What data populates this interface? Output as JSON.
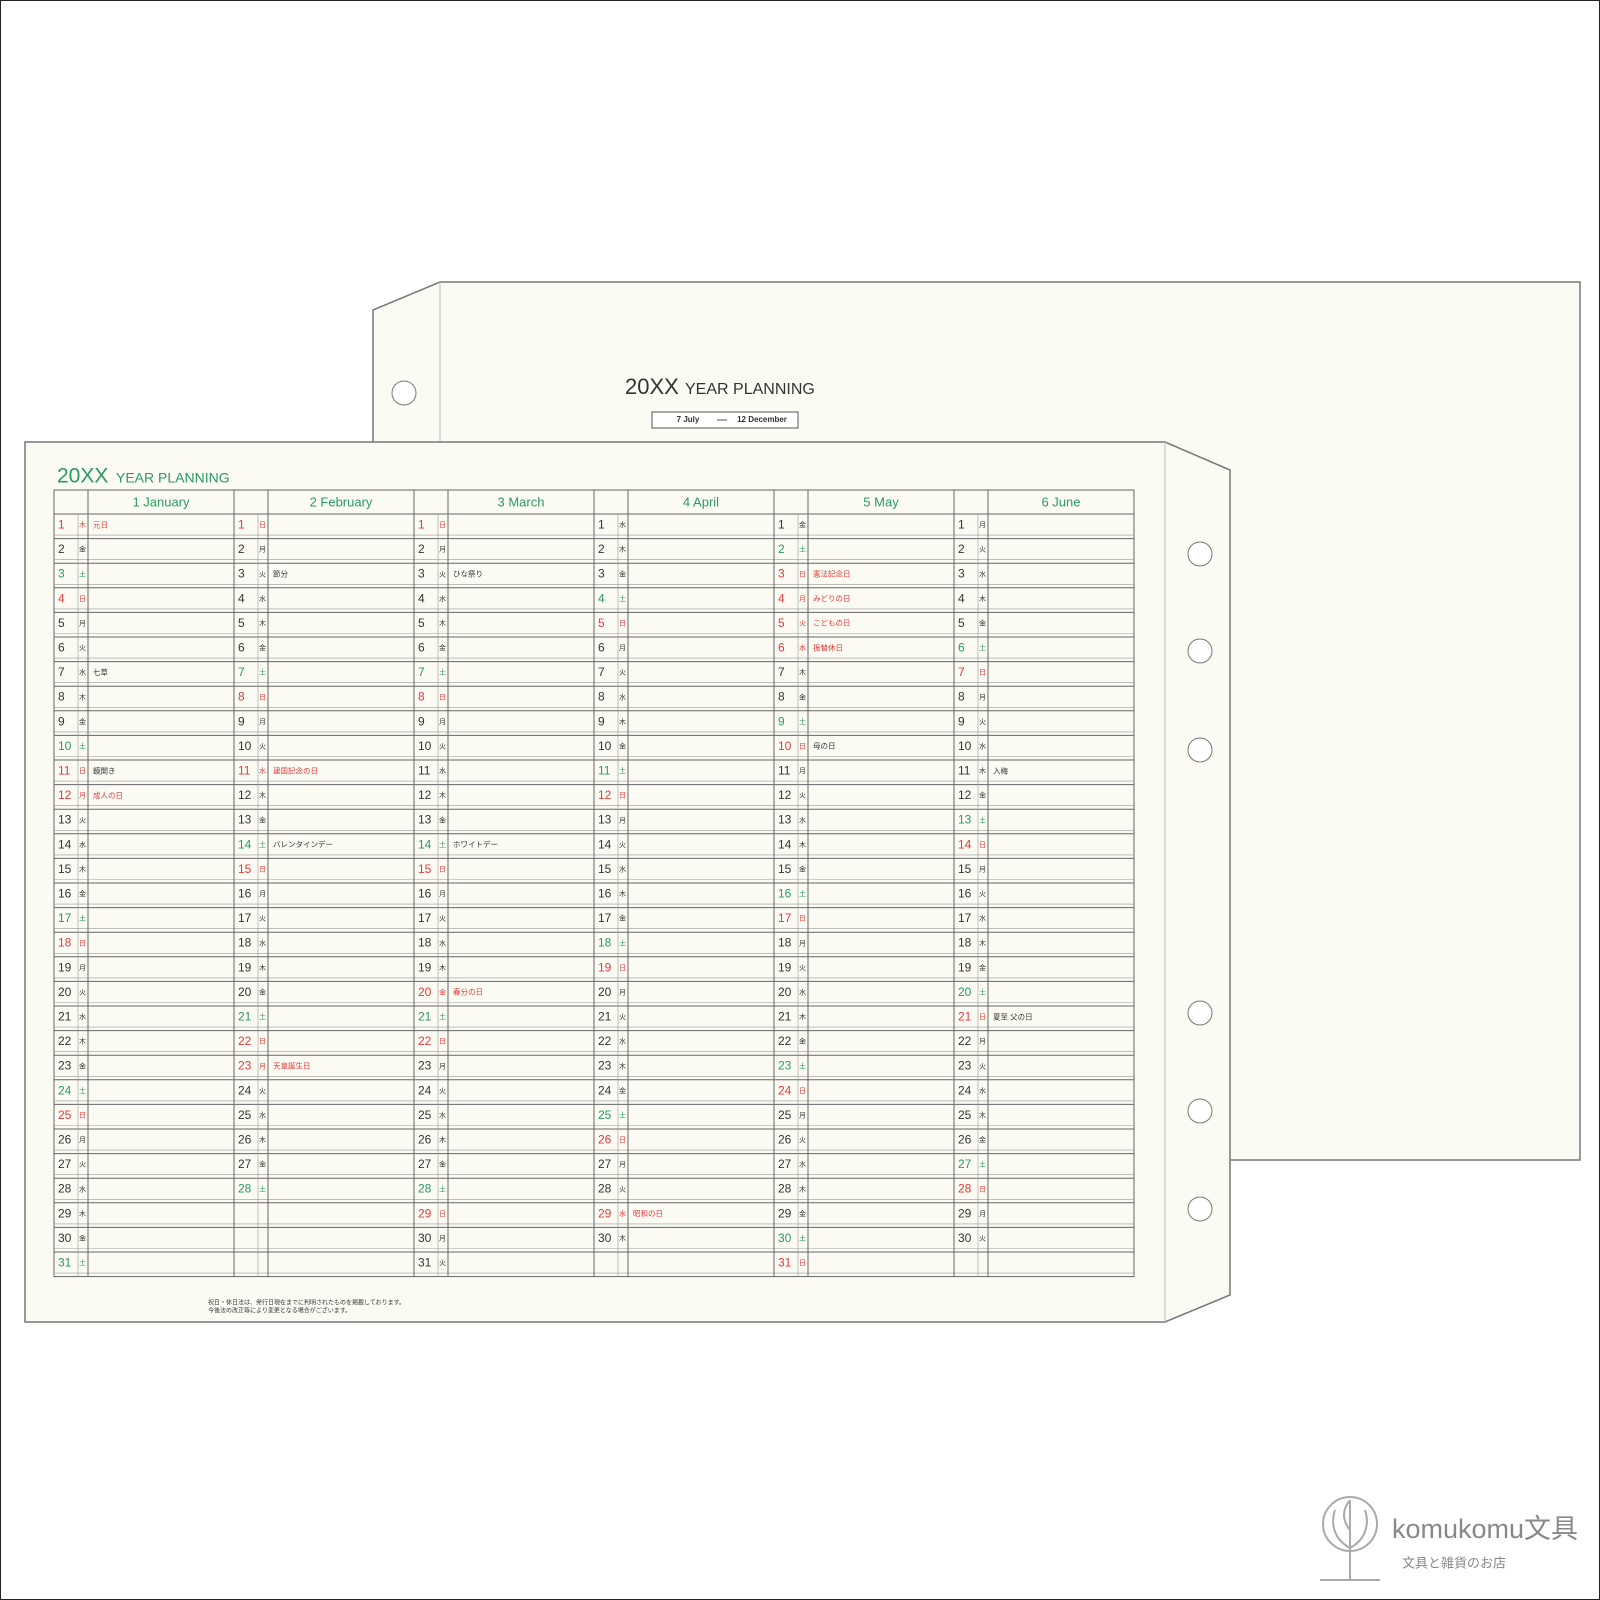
{
  "back_page": {
    "title_number": "20XX",
    "title_text": "YEAR PLANNING",
    "range_start": "7 July",
    "range_end": "12 December"
  },
  "front_page": {
    "title_number": "20XX",
    "title_text": "YEAR PLANNING",
    "footnote": [
      "祝日・休日法は、発行日現在までに判明されたものを掲載しております。",
      "今後法の改正等により変更となる場合がございます。"
    ],
    "months": [
      {
        "name": "1 January",
        "days": [
          {
            "d": 1,
            "w": "木",
            "c": "#e23b3b",
            "n": "元日",
            "nc": "#e23b3b"
          },
          {
            "d": 2,
            "w": "金"
          },
          {
            "d": 3,
            "w": "土",
            "c": "#2b9a60"
          },
          {
            "d": 4,
            "w": "日",
            "c": "#e23b3b"
          },
          {
            "d": 5,
            "w": "月"
          },
          {
            "d": 6,
            "w": "火"
          },
          {
            "d": 7,
            "w": "水",
            "n": "七草"
          },
          {
            "d": 8,
            "w": "木"
          },
          {
            "d": 9,
            "w": "金"
          },
          {
            "d": 10,
            "w": "土",
            "c": "#2b9a60"
          },
          {
            "d": 11,
            "w": "日",
            "c": "#e23b3b",
            "n": "鏡開き"
          },
          {
            "d": 12,
            "w": "月",
            "c": "#e23b3b",
            "n": "成人の日",
            "nc": "#e23b3b"
          },
          {
            "d": 13,
            "w": "火"
          },
          {
            "d": 14,
            "w": "水"
          },
          {
            "d": 15,
            "w": "木"
          },
          {
            "d": 16,
            "w": "金"
          },
          {
            "d": 17,
            "w": "土",
            "c": "#2b9a60"
          },
          {
            "d": 18,
            "w": "日",
            "c": "#e23b3b"
          },
          {
            "d": 19,
            "w": "月"
          },
          {
            "d": 20,
            "w": "火"
          },
          {
            "d": 21,
            "w": "水"
          },
          {
            "d": 22,
            "w": "木"
          },
          {
            "d": 23,
            "w": "金"
          },
          {
            "d": 24,
            "w": "土",
            "c": "#2b9a60"
          },
          {
            "d": 25,
            "w": "日",
            "c": "#e23b3b"
          },
          {
            "d": 26,
            "w": "月"
          },
          {
            "d": 27,
            "w": "火"
          },
          {
            "d": 28,
            "w": "水"
          },
          {
            "d": 29,
            "w": "木"
          },
          {
            "d": 30,
            "w": "金"
          },
          {
            "d": 31,
            "w": "土",
            "c": "#2b9a60"
          }
        ]
      },
      {
        "name": "2 February",
        "days": [
          {
            "d": 1,
            "w": "日",
            "c": "#e23b3b"
          },
          {
            "d": 2,
            "w": "月"
          },
          {
            "d": 3,
            "w": "火",
            "n": "節分"
          },
          {
            "d": 4,
            "w": "水"
          },
          {
            "d": 5,
            "w": "木"
          },
          {
            "d": 6,
            "w": "金"
          },
          {
            "d": 7,
            "w": "土",
            "c": "#2b9a60"
          },
          {
            "d": 8,
            "w": "日",
            "c": "#e23b3b"
          },
          {
            "d": 9,
            "w": "月"
          },
          {
            "d": 10,
            "w": "火"
          },
          {
            "d": 11,
            "w": "水",
            "c": "#e23b3b",
            "n": "建国記念の日",
            "nc": "#e23b3b"
          },
          {
            "d": 12,
            "w": "木"
          },
          {
            "d": 13,
            "w": "金"
          },
          {
            "d": 14,
            "w": "土",
            "c": "#2b9a60",
            "n": "バレンタインデー"
          },
          {
            "d": 15,
            "w": "日",
            "c": "#e23b3b"
          },
          {
            "d": 16,
            "w": "月"
          },
          {
            "d": 17,
            "w": "火"
          },
          {
            "d": 18,
            "w": "水"
          },
          {
            "d": 19,
            "w": "木"
          },
          {
            "d": 20,
            "w": "金"
          },
          {
            "d": 21,
            "w": "土",
            "c": "#2b9a60"
          },
          {
            "d": 22,
            "w": "日",
            "c": "#e23b3b"
          },
          {
            "d": 23,
            "w": "月",
            "c": "#e23b3b",
            "n": "天皇誕生日",
            "nc": "#e23b3b"
          },
          {
            "d": 24,
            "w": "火"
          },
          {
            "d": 25,
            "w": "水"
          },
          {
            "d": 26,
            "w": "木"
          },
          {
            "d": 27,
            "w": "金"
          },
          {
            "d": 28,
            "w": "土",
            "c": "#2b9a60"
          }
        ]
      },
      {
        "name": "3 March",
        "days": [
          {
            "d": 1,
            "w": "日",
            "c": "#e23b3b"
          },
          {
            "d": 2,
            "w": "月"
          },
          {
            "d": 3,
            "w": "火",
            "n": "ひな祭り"
          },
          {
            "d": 4,
            "w": "水"
          },
          {
            "d": 5,
            "w": "木"
          },
          {
            "d": 6,
            "w": "金"
          },
          {
            "d": 7,
            "w": "土",
            "c": "#2b9a60"
          },
          {
            "d": 8,
            "w": "日",
            "c": "#e23b3b"
          },
          {
            "d": 9,
            "w": "月"
          },
          {
            "d": 10,
            "w": "火"
          },
          {
            "d": 11,
            "w": "水"
          },
          {
            "d": 12,
            "w": "木"
          },
          {
            "d": 13,
            "w": "金"
          },
          {
            "d": 14,
            "w": "土",
            "c": "#2b9a60",
            "n": "ホワイトデー"
          },
          {
            "d": 15,
            "w": "日",
            "c": "#e23b3b"
          },
          {
            "d": 16,
            "w": "月"
          },
          {
            "d": 17,
            "w": "火"
          },
          {
            "d": 18,
            "w": "水"
          },
          {
            "d": 19,
            "w": "木"
          },
          {
            "d": 20,
            "w": "金",
            "c": "#e23b3b",
            "n": "春分の日",
            "nc": "#e23b3b"
          },
          {
            "d": 21,
            "w": "土",
            "c": "#2b9a60"
          },
          {
            "d": 22,
            "w": "日",
            "c": "#e23b3b"
          },
          {
            "d": 23,
            "w": "月"
          },
          {
            "d": 24,
            "w": "火"
          },
          {
            "d": 25,
            "w": "水"
          },
          {
            "d": 26,
            "w": "木"
          },
          {
            "d": 27,
            "w": "金"
          },
          {
            "d": 28,
            "w": "土",
            "c": "#2b9a60"
          },
          {
            "d": 29,
            "w": "日",
            "c": "#e23b3b"
          },
          {
            "d": 30,
            "w": "月"
          },
          {
            "d": 31,
            "w": "火"
          }
        ]
      },
      {
        "name": "4 April",
        "days": [
          {
            "d": 1,
            "w": "水"
          },
          {
            "d": 2,
            "w": "木"
          },
          {
            "d": 3,
            "w": "金"
          },
          {
            "d": 4,
            "w": "土",
            "c": "#2b9a60"
          },
          {
            "d": 5,
            "w": "日",
            "c": "#e23b3b"
          },
          {
            "d": 6,
            "w": "月"
          },
          {
            "d": 7,
            "w": "火"
          },
          {
            "d": 8,
            "w": "水"
          },
          {
            "d": 9,
            "w": "木"
          },
          {
            "d": 10,
            "w": "金"
          },
          {
            "d": 11,
            "w": "土",
            "c": "#2b9a60"
          },
          {
            "d": 12,
            "w": "日",
            "c": "#e23b3b"
          },
          {
            "d": 13,
            "w": "月"
          },
          {
            "d": 14,
            "w": "火"
          },
          {
            "d": 15,
            "w": "水"
          },
          {
            "d": 16,
            "w": "木"
          },
          {
            "d": 17,
            "w": "金"
          },
          {
            "d": 18,
            "w": "土",
            "c": "#2b9a60"
          },
          {
            "d": 19,
            "w": "日",
            "c": "#e23b3b"
          },
          {
            "d": 20,
            "w": "月"
          },
          {
            "d": 21,
            "w": "火"
          },
          {
            "d": 22,
            "w": "水"
          },
          {
            "d": 23,
            "w": "木"
          },
          {
            "d": 24,
            "w": "金"
          },
          {
            "d": 25,
            "w": "土",
            "c": "#2b9a60"
          },
          {
            "d": 26,
            "w": "日",
            "c": "#e23b3b"
          },
          {
            "d": 27,
            "w": "月"
          },
          {
            "d": 28,
            "w": "火"
          },
          {
            "d": 29,
            "w": "水",
            "c": "#e23b3b",
            "n": "昭和の日",
            "nc": "#e23b3b"
          },
          {
            "d": 30,
            "w": "木"
          }
        ]
      },
      {
        "name": "5 May",
        "days": [
          {
            "d": 1,
            "w": "金"
          },
          {
            "d": 2,
            "w": "土",
            "c": "#2b9a60"
          },
          {
            "d": 3,
            "w": "日",
            "c": "#e23b3b",
            "n": "憲法記念日",
            "nc": "#e23b3b"
          },
          {
            "d": 4,
            "w": "月",
            "c": "#e23b3b",
            "n": "みどりの日",
            "nc": "#e23b3b"
          },
          {
            "d": 5,
            "w": "火",
            "c": "#e23b3b",
            "n": "こどもの日",
            "nc": "#e23b3b"
          },
          {
            "d": 6,
            "w": "水",
            "c": "#e23b3b",
            "n": "振替休日",
            "nc": "#e23b3b"
          },
          {
            "d": 7,
            "w": "木"
          },
          {
            "d": 8,
            "w": "金"
          },
          {
            "d": 9,
            "w": "土",
            "c": "#2b9a60"
          },
          {
            "d": 10,
            "w": "日",
            "c": "#e23b3b",
            "n": "母の日"
          },
          {
            "d": 11,
            "w": "月"
          },
          {
            "d": 12,
            "w": "火"
          },
          {
            "d": 13,
            "w": "水"
          },
          {
            "d": 14,
            "w": "木"
          },
          {
            "d": 15,
            "w": "金"
          },
          {
            "d": 16,
            "w": "土",
            "c": "#2b9a60"
          },
          {
            "d": 17,
            "w": "日",
            "c": "#e23b3b"
          },
          {
            "d": 18,
            "w": "月"
          },
          {
            "d": 19,
            "w": "火"
          },
          {
            "d": 20,
            "w": "水"
          },
          {
            "d": 21,
            "w": "木"
          },
          {
            "d": 22,
            "w": "金"
          },
          {
            "d": 23,
            "w": "土",
            "c": "#2b9a60"
          },
          {
            "d": 24,
            "w": "日",
            "c": "#e23b3b"
          },
          {
            "d": 25,
            "w": "月"
          },
          {
            "d": 26,
            "w": "火"
          },
          {
            "d": 27,
            "w": "水"
          },
          {
            "d": 28,
            "w": "木"
          },
          {
            "d": 29,
            "w": "金"
          },
          {
            "d": 30,
            "w": "土",
            "c": "#2b9a60"
          },
          {
            "d": 31,
            "w": "日",
            "c": "#e23b3b"
          }
        ]
      },
      {
        "name": "6 June",
        "days": [
          {
            "d": 1,
            "w": "月"
          },
          {
            "d": 2,
            "w": "火"
          },
          {
            "d": 3,
            "w": "水"
          },
          {
            "d": 4,
            "w": "木"
          },
          {
            "d": 5,
            "w": "金"
          },
          {
            "d": 6,
            "w": "土",
            "c": "#2b9a60"
          },
          {
            "d": 7,
            "w": "日",
            "c": "#e23b3b"
          },
          {
            "d": 8,
            "w": "月"
          },
          {
            "d": 9,
            "w": "火"
          },
          {
            "d": 10,
            "w": "水"
          },
          {
            "d": 11,
            "w": "木",
            "n": "入梅"
          },
          {
            "d": 12,
            "w": "金"
          },
          {
            "d": 13,
            "w": "土",
            "c": "#2b9a60"
          },
          {
            "d": 14,
            "w": "日",
            "c": "#e23b3b"
          },
          {
            "d": 15,
            "w": "月"
          },
          {
            "d": 16,
            "w": "火"
          },
          {
            "d": 17,
            "w": "水"
          },
          {
            "d": 18,
            "w": "木"
          },
          {
            "d": 19,
            "w": "金"
          },
          {
            "d": 20,
            "w": "土",
            "c": "#2b9a60"
          },
          {
            "d": 21,
            "w": "日",
            "c": "#e23b3b",
            "n": "夏至 父の日"
          },
          {
            "d": 22,
            "w": "月"
          },
          {
            "d": 23,
            "w": "火"
          },
          {
            "d": 24,
            "w": "水"
          },
          {
            "d": 25,
            "w": "木"
          },
          {
            "d": 26,
            "w": "金"
          },
          {
            "d": 27,
            "w": "土",
            "c": "#2b9a60"
          },
          {
            "d": 28,
            "w": "日",
            "c": "#e23b3b"
          },
          {
            "d": 29,
            "w": "月"
          },
          {
            "d": 30,
            "w": "火"
          }
        ]
      }
    ]
  },
  "logo": {
    "name": "komukomu文具",
    "tagline": "文具と雑貨のお店"
  }
}
